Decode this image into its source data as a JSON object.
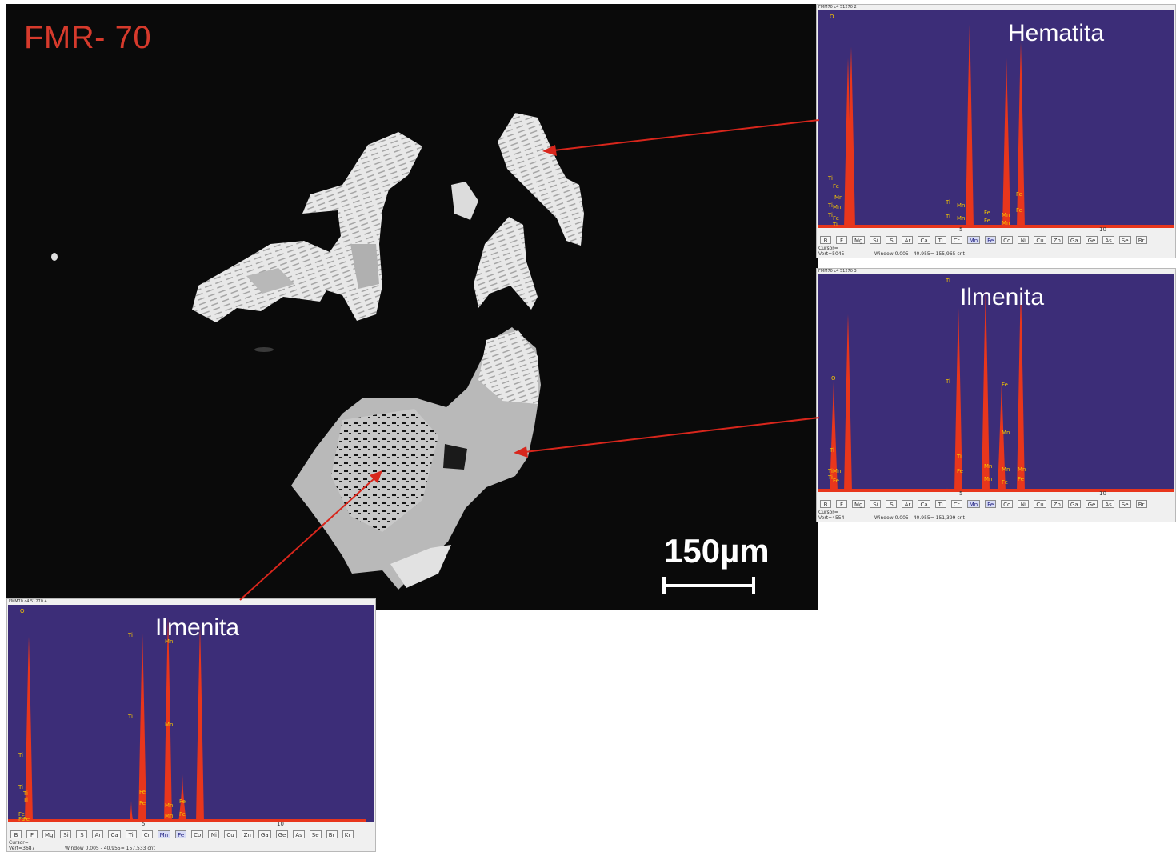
{
  "figure": {
    "sample_label": "FMR- 70",
    "scale_label": "150µm"
  },
  "spectra": [
    {
      "id": "hematita",
      "title": "FMM70 c4 51270 2",
      "mineral": "Hematita",
      "tick_5": "5",
      "tick_10": "10",
      "cursor": "Cursor=",
      "vert": "Vert=5045",
      "window": "Window 0.005 - 40.955= 155,965 cnt",
      "buttons": [
        "B",
        "F",
        "Mg",
        "Si",
        "S",
        "Ar",
        "Ca",
        "Ti",
        "Cr",
        "Mn",
        "Fe",
        "Co",
        "Ni",
        "Cu",
        "Zn",
        "Ga",
        "Ge",
        "As",
        "Se",
        "Br"
      ],
      "active_buttons": [
        "Mn",
        "Fe"
      ],
      "labels": [
        "O",
        "Ti",
        "Fe",
        "Mn",
        "Ti",
        "Mn",
        "Ti",
        "Fe",
        "Ti",
        "Ti",
        "Ti",
        "Mn",
        "Mn",
        "Fe",
        "Fe",
        "Mn",
        "Mn",
        "Fe",
        "Fe"
      ]
    },
    {
      "id": "ilmenita-1",
      "title": "FMM70 c4 51270 3",
      "mineral": "Ilmenita",
      "tick_5": "5",
      "tick_10": "10",
      "cursor": "Cursor=",
      "vert": "Vert=4554",
      "window": "Window 0.005 - 40.955= 151,399 cnt",
      "buttons": [
        "B",
        "F",
        "Mg",
        "Si",
        "S",
        "Ar",
        "Ca",
        "Ti",
        "Cr",
        "Mn",
        "Fe",
        "Co",
        "Ni",
        "Cu",
        "Zn",
        "Ga",
        "Ge",
        "As",
        "Se",
        "Br"
      ],
      "active_buttons": [
        "Mn",
        "Fe"
      ],
      "labels": [
        "Ti",
        "O",
        "Ti",
        "Ti",
        "Ti",
        "Mn",
        "Ti",
        "Fe",
        "Ti",
        "Fe",
        "Fe",
        "Mn",
        "Mn",
        "Mn",
        "Mn",
        "Fe",
        "Mn",
        "Fe"
      ]
    },
    {
      "id": "ilmenita-2",
      "title": "FMM70 c4 51270 4",
      "mineral": "Ilmenita",
      "tick_5": "5",
      "tick_10": "10",
      "cursor": "Cursor=",
      "vert": "Vert=3687",
      "window": "Window 0.005 - 40.955= 157,533 cnt",
      "buttons": [
        "B",
        "F",
        "Mg",
        "Si",
        "S",
        "Ar",
        "Ca",
        "Ti",
        "Cr",
        "Mn",
        "Fe",
        "Co",
        "Ni",
        "Cu",
        "Zn",
        "Ga",
        "Ge",
        "As",
        "Se",
        "Br",
        "Kr"
      ],
      "active_buttons": [
        "Mn",
        "Fe"
      ],
      "labels": [
        "O",
        "Ti",
        "Ti",
        "Ti",
        "Fe",
        "Ti",
        "Fe",
        "Fe",
        "Ti",
        "Ti",
        "Fe",
        "Fe",
        "Mn",
        "Mn",
        "Mn",
        "Mn",
        "Fe",
        "Fe"
      ]
    }
  ],
  "colors": {
    "sem_background": "#0a0a0a",
    "sample_label": "#d63a2c",
    "spectrum_background": "#3c2d78",
    "peak_fill": "#e8361c",
    "peak_label": "#f5c400",
    "arrow": "#d8261c"
  }
}
